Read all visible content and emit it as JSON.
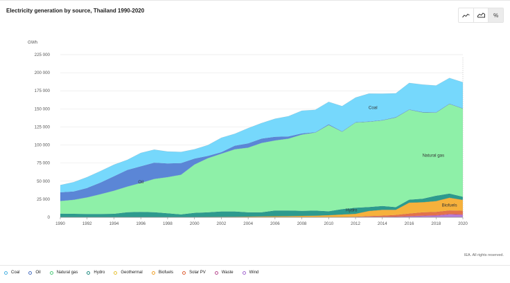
{
  "title": "Electricity generation by source, Thailand 1990-2020",
  "toolbar": {
    "buttons": [
      {
        "name": "line-chart",
        "icon": "line-chart-icon"
      },
      {
        "name": "area-chart",
        "icon": "area-chart-icon"
      },
      {
        "name": "percent",
        "label": "%"
      }
    ]
  },
  "credit": "IEA. All rights reserved.",
  "chart_data": {
    "type": "area",
    "stacked": true,
    "ylabel": "GWh",
    "ylim": [
      0,
      225000
    ],
    "yticks": [
      0,
      25000,
      50000,
      75000,
      100000,
      125000,
      150000,
      175000,
      200000,
      225000
    ],
    "ytick_labels": [
      "0",
      "25 000",
      "50 000",
      "75 000",
      "100 000",
      "125 000",
      "150 000",
      "175 000",
      "200 000",
      "225 000"
    ],
    "xlim": [
      1990,
      2020
    ],
    "xticks": [
      1990,
      1992,
      1994,
      1996,
      1998,
      2000,
      2002,
      2004,
      2006,
      2008,
      2010,
      2012,
      2014,
      2016,
      2018,
      2020
    ],
    "grid": true,
    "legend_position": "bottom",
    "x": [
      1990,
      1991,
      1992,
      1993,
      1994,
      1995,
      1996,
      1997,
      1998,
      1999,
      2000,
      2001,
      2002,
      2003,
      2004,
      2005,
      2006,
      2007,
      2008,
      2009,
      2010,
      2011,
      2012,
      2013,
      2014,
      2015,
      2016,
      2017,
      2018,
      2019,
      2020
    ],
    "series": [
      {
        "name": "Wind",
        "color": "#b57edc",
        "values": [
          0,
          0,
          0,
          0,
          0,
          0,
          0,
          0,
          0,
          0,
          0,
          0,
          0,
          0,
          0,
          0,
          0,
          0,
          0,
          0,
          0,
          0,
          200,
          300,
          300,
          400,
          1000,
          1500,
          2000,
          3500,
          3000
        ]
      },
      {
        "name": "Waste",
        "color": "#c65a9e",
        "values": [
          0,
          0,
          0,
          0,
          0,
          0,
          0,
          0,
          0,
          0,
          0,
          0,
          0,
          0,
          0,
          0,
          0,
          0,
          0,
          0,
          100,
          200,
          300,
          400,
          500,
          600,
          700,
          800,
          900,
          1000,
          1000
        ]
      },
      {
        "name": "Solar PV",
        "color": "#e2724a",
        "values": [
          0,
          0,
          0,
          0,
          0,
          0,
          0,
          0,
          0,
          0,
          0,
          0,
          0,
          0,
          0,
          0,
          0,
          0,
          0,
          0,
          0,
          100,
          300,
          1000,
          1500,
          2300,
          3500,
          4500,
          4500,
          5000,
          5000
        ]
      },
      {
        "name": "Biofuels",
        "color": "#f6b13c",
        "values": [
          0,
          0,
          0,
          0,
          0,
          0,
          0,
          0,
          0,
          100,
          100,
          500,
          600,
          800,
          1000,
          1200,
          1400,
          1500,
          1900,
          2200,
          2800,
          3500,
          4000,
          7000,
          8000,
          7000,
          15000,
          14000,
          15000,
          17500,
          15000
        ]
      },
      {
        "name": "Geothermal",
        "color": "#f2d55a",
        "values": [
          0,
          0,
          0,
          0,
          0,
          0,
          0,
          0,
          0,
          0,
          0,
          0,
          0,
          0,
          0,
          0,
          0,
          0,
          0,
          0,
          0,
          0,
          0,
          0,
          0,
          0,
          0,
          0,
          0,
          0,
          0
        ]
      },
      {
        "name": "Hydro",
        "color": "#2d9a8e",
        "values": [
          5000,
          4800,
          4500,
          4500,
          4800,
          7000,
          7500,
          7000,
          5500,
          3800,
          6000,
          6300,
          7400,
          7200,
          5800,
          5600,
          7900,
          7800,
          7000,
          7000,
          5300,
          7500,
          8300,
          5400,
          5200,
          3700,
          4100,
          4800,
          7400,
          5700,
          4300
        ]
      },
      {
        "name": "Natural gas",
        "color": "#8ef0a8",
        "values": [
          17500,
          19300,
          23000,
          27500,
          32000,
          35500,
          40000,
          46000,
          50000,
          55000,
          67000,
          75000,
          80000,
          86000,
          89500,
          96000,
          97000,
          99500,
          105500,
          108000,
          119500,
          107000,
          118000,
          118000,
          118500,
          124000,
          124500,
          119500,
          115000,
          124000,
          122000
        ]
      },
      {
        "name": "Oil",
        "color": "#5b86d6",
        "values": [
          12000,
          11500,
          13000,
          16000,
          20000,
          23000,
          23000,
          22500,
          19000,
          16000,
          8000,
          3000,
          2000,
          5000,
          6000,
          6000,
          5000,
          3000,
          1500,
          500,
          1000,
          500,
          500,
          500,
          500,
          500,
          500,
          500,
          500,
          500,
          500
        ]
      },
      {
        "name": "Coal",
        "color": "#76d8fc",
        "values": [
          10000,
          13000,
          15000,
          16000,
          16000,
          14000,
          18500,
          18000,
          16500,
          15500,
          13000,
          15000,
          20000,
          16500,
          21000,
          21500,
          25000,
          28000,
          31500,
          31000,
          31000,
          35000,
          34000,
          38500,
          36500,
          33000,
          36500,
          38000,
          37000,
          35500,
          36000
        ]
      }
    ],
    "annotations": [
      {
        "text": "Coal",
        "x": 2013.3,
        "y": 150000
      },
      {
        "text": "Oil",
        "x": 1996.0,
        "y": 47000
      },
      {
        "text": "Natural gas",
        "x": 2017.8,
        "y": 84000
      },
      {
        "text": "Hydro",
        "x": 2011.7,
        "y": 8000
      },
      {
        "text": "Biofuels",
        "x": 2019.0,
        "y": 15000
      }
    ]
  },
  "legend": [
    {
      "name": "Coal",
      "color": "#46b0e1"
    },
    {
      "name": "Oil",
      "color": "#4a6fc0"
    },
    {
      "name": "Natural gas",
      "color": "#4bc978"
    },
    {
      "name": "Hydro",
      "color": "#1f8a80"
    },
    {
      "name": "Geothermal",
      "color": "#e6c235"
    },
    {
      "name": "Biofuels",
      "color": "#f0a128"
    },
    {
      "name": "Solar PV",
      "color": "#de5e32"
    },
    {
      "name": "Waste",
      "color": "#b84a90"
    },
    {
      "name": "Wind",
      "color": "#a366d0"
    }
  ]
}
